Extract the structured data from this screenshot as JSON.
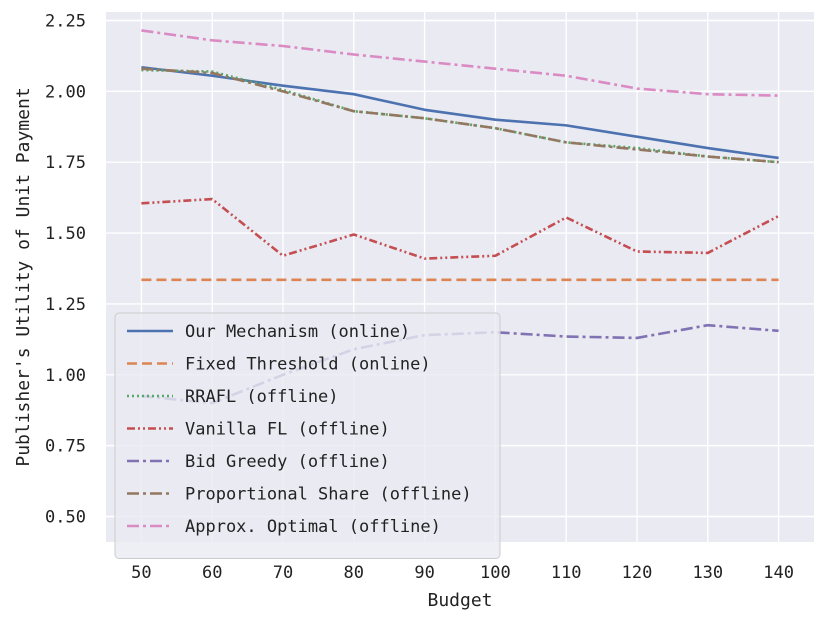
{
  "chart_data": {
    "type": "line",
    "title": "",
    "xlabel": "Budget",
    "ylabel": "Publisher's Utility of Unit Payment",
    "x": [
      50,
      60,
      70,
      80,
      90,
      100,
      110,
      120,
      130,
      140
    ],
    "x_ticks": [
      "50",
      "60",
      "70",
      "80",
      "90",
      "100",
      "110",
      "120",
      "130",
      "140"
    ],
    "y_ticks": [
      "0.50",
      "0.75",
      "1.00",
      "1.25",
      "1.50",
      "1.75",
      "2.00",
      "2.25"
    ],
    "xlim": [
      45,
      145
    ],
    "ylim": [
      0.41,
      2.28
    ],
    "grid": true,
    "legend_position": "lower-left",
    "series": [
      {
        "name": "Our Mechanism (online)",
        "color": "#4c72b0",
        "dash": "solid",
        "values": [
          2.085,
          2.055,
          2.02,
          1.99,
          1.935,
          1.9,
          1.88,
          1.84,
          1.8,
          1.765
        ]
      },
      {
        "name": "Fixed Threshold (online)",
        "color": "#dd8452",
        "dash": "dashed",
        "values": [
          1.335,
          1.335,
          1.335,
          1.335,
          1.335,
          1.335,
          1.335,
          1.335,
          1.335,
          1.335
        ]
      },
      {
        "name": "RRAFL (offline)",
        "color": "#55a868",
        "dash": "dotted",
        "values": [
          2.075,
          2.07,
          2.005,
          1.93,
          1.905,
          1.87,
          1.82,
          1.8,
          1.77,
          1.75
        ]
      },
      {
        "name": "Vanilla FL (offline)",
        "color": "#c44e52",
        "dash": "dashdotdot",
        "values": [
          1.605,
          1.62,
          1.42,
          1.495,
          1.41,
          1.42,
          1.555,
          1.435,
          1.43,
          1.56
        ]
      },
      {
        "name": "Bid Greedy (offline)",
        "color": "#8172b3",
        "dash": "dashdot",
        "values": [
          0.925,
          0.9,
          1.0,
          1.09,
          1.14,
          1.15,
          1.135,
          1.13,
          1.175,
          1.155
        ]
      },
      {
        "name": "Proportional Share (offline)",
        "color": "#937860",
        "dash": "dashdot",
        "values": [
          2.08,
          2.065,
          2.0,
          1.93,
          1.905,
          1.87,
          1.82,
          1.795,
          1.77,
          1.75
        ]
      },
      {
        "name": "Approx. Optimal (offline)",
        "color": "#da8bc3",
        "dash": "dashdot",
        "values": [
          2.215,
          2.18,
          2.16,
          2.13,
          2.105,
          2.08,
          2.055,
          2.01,
          1.99,
          1.985
        ]
      }
    ]
  }
}
